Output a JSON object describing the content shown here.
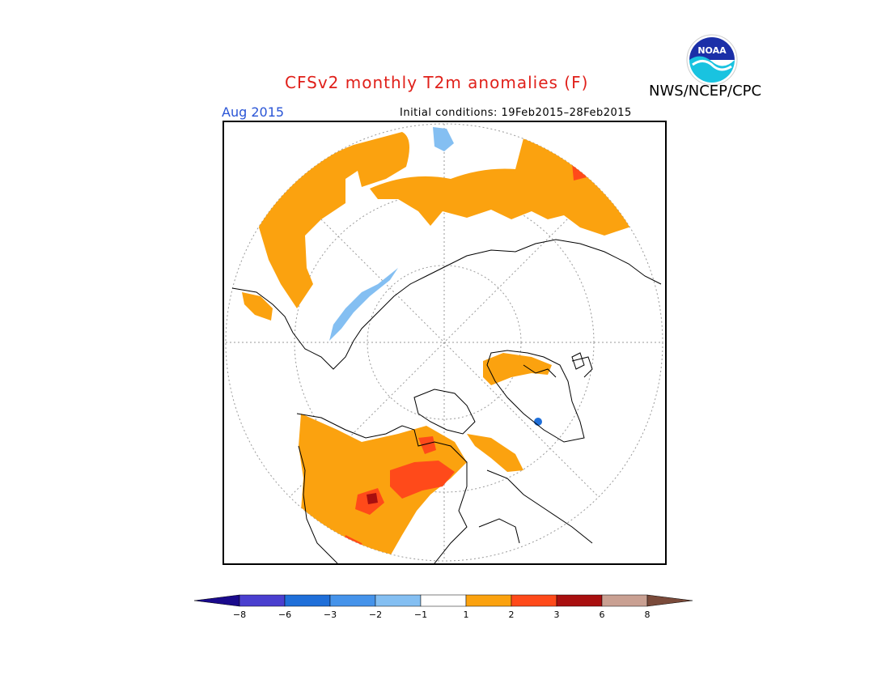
{
  "header": {
    "title": "CFSv2 monthly T2m anomalies (F)",
    "agency": "NWS/NCEP/CPC",
    "logo_text": "NOAA",
    "month": "Aug 2015",
    "initial_conditions": "Initial conditions: 19Feb2015–28Feb2015"
  },
  "legend": {
    "labels": [
      "−8",
      "−6",
      "−3",
      "−2",
      "−1",
      "1",
      "2",
      "3",
      "6",
      "8"
    ],
    "colors": [
      "#1a0a8c",
      "#4a3fcf",
      "#1f6fd9",
      "#4593ea",
      "#84bff2",
      "#ffffff",
      "#fba20f",
      "#ff4a1a",
      "#a80f0f",
      "#c9a092",
      "#7a4a3a"
    ]
  },
  "map": {
    "projection": "north-polar-stereographic",
    "colors": {
      "warm1": "#fba20f",
      "warm2": "#ff4a1a",
      "warm3": "#a80f0f",
      "cool1": "#84bff2",
      "cool2": "#4593ea",
      "coast": "#000000",
      "grid": "#9a9a9a"
    }
  }
}
